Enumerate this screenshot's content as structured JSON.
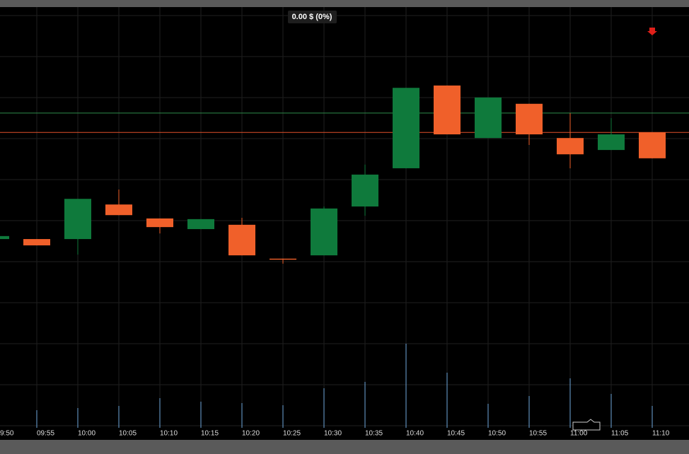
{
  "chart_data": {
    "type": "candlestick",
    "header_label": "0.00 $ (0%)",
    "categories": [
      "9:50",
      "09:55",
      "10:00",
      "10:05",
      "10:10",
      "10:15",
      "10:20",
      "10:25",
      "10:30",
      "10:35",
      "10:40",
      "10:45",
      "10:50",
      "10:55",
      "11:00",
      "11:05",
      "11:10"
    ],
    "open": [
      30.2,
      30.2,
      30.2,
      40.6,
      36.4,
      33.2,
      34.5,
      24.3,
      25.3,
      40.0,
      51.5,
      76.4,
      60.6,
      70.9,
      60.6,
      57.0,
      62.3
    ],
    "high": [
      31.1,
      30.2,
      42.3,
      45.1,
      36.4,
      36.2,
      36.6,
      24.3,
      40.0,
      52.6,
      75.7,
      76.4,
      72.8,
      70.9,
      68.1,
      66.6,
      62.3
    ],
    "low": [
      30.2,
      28.3,
      25.5,
      37.4,
      31.9,
      33.2,
      25.3,
      22.8,
      25.3,
      37.2,
      51.5,
      61.7,
      60.6,
      58.5,
      51.5,
      57.0,
      54.5
    ],
    "close": [
      31.1,
      28.3,
      42.3,
      37.4,
      33.8,
      36.2,
      25.3,
      24.0,
      39.4,
      49.6,
      75.7,
      61.7,
      72.8,
      61.7,
      55.7,
      61.7,
      54.5
    ],
    "volume": [
      null,
      25,
      28,
      31,
      42,
      37,
      35,
      32,
      56,
      65,
      119,
      78,
      34,
      45,
      70,
      48,
      31
    ],
    "up_color": "#0f7a3c",
    "down_color": "#f0602a",
    "volume_color": "#6fa8dc",
    "reference_lines": [
      {
        "value": 68.1,
        "color": "#2e8b4a"
      },
      {
        "value": 62.3,
        "color": "#e0502a"
      }
    ],
    "ylim": [
      0,
      100
    ],
    "volume_ylim": [
      0,
      120
    ],
    "grid": true
  }
}
